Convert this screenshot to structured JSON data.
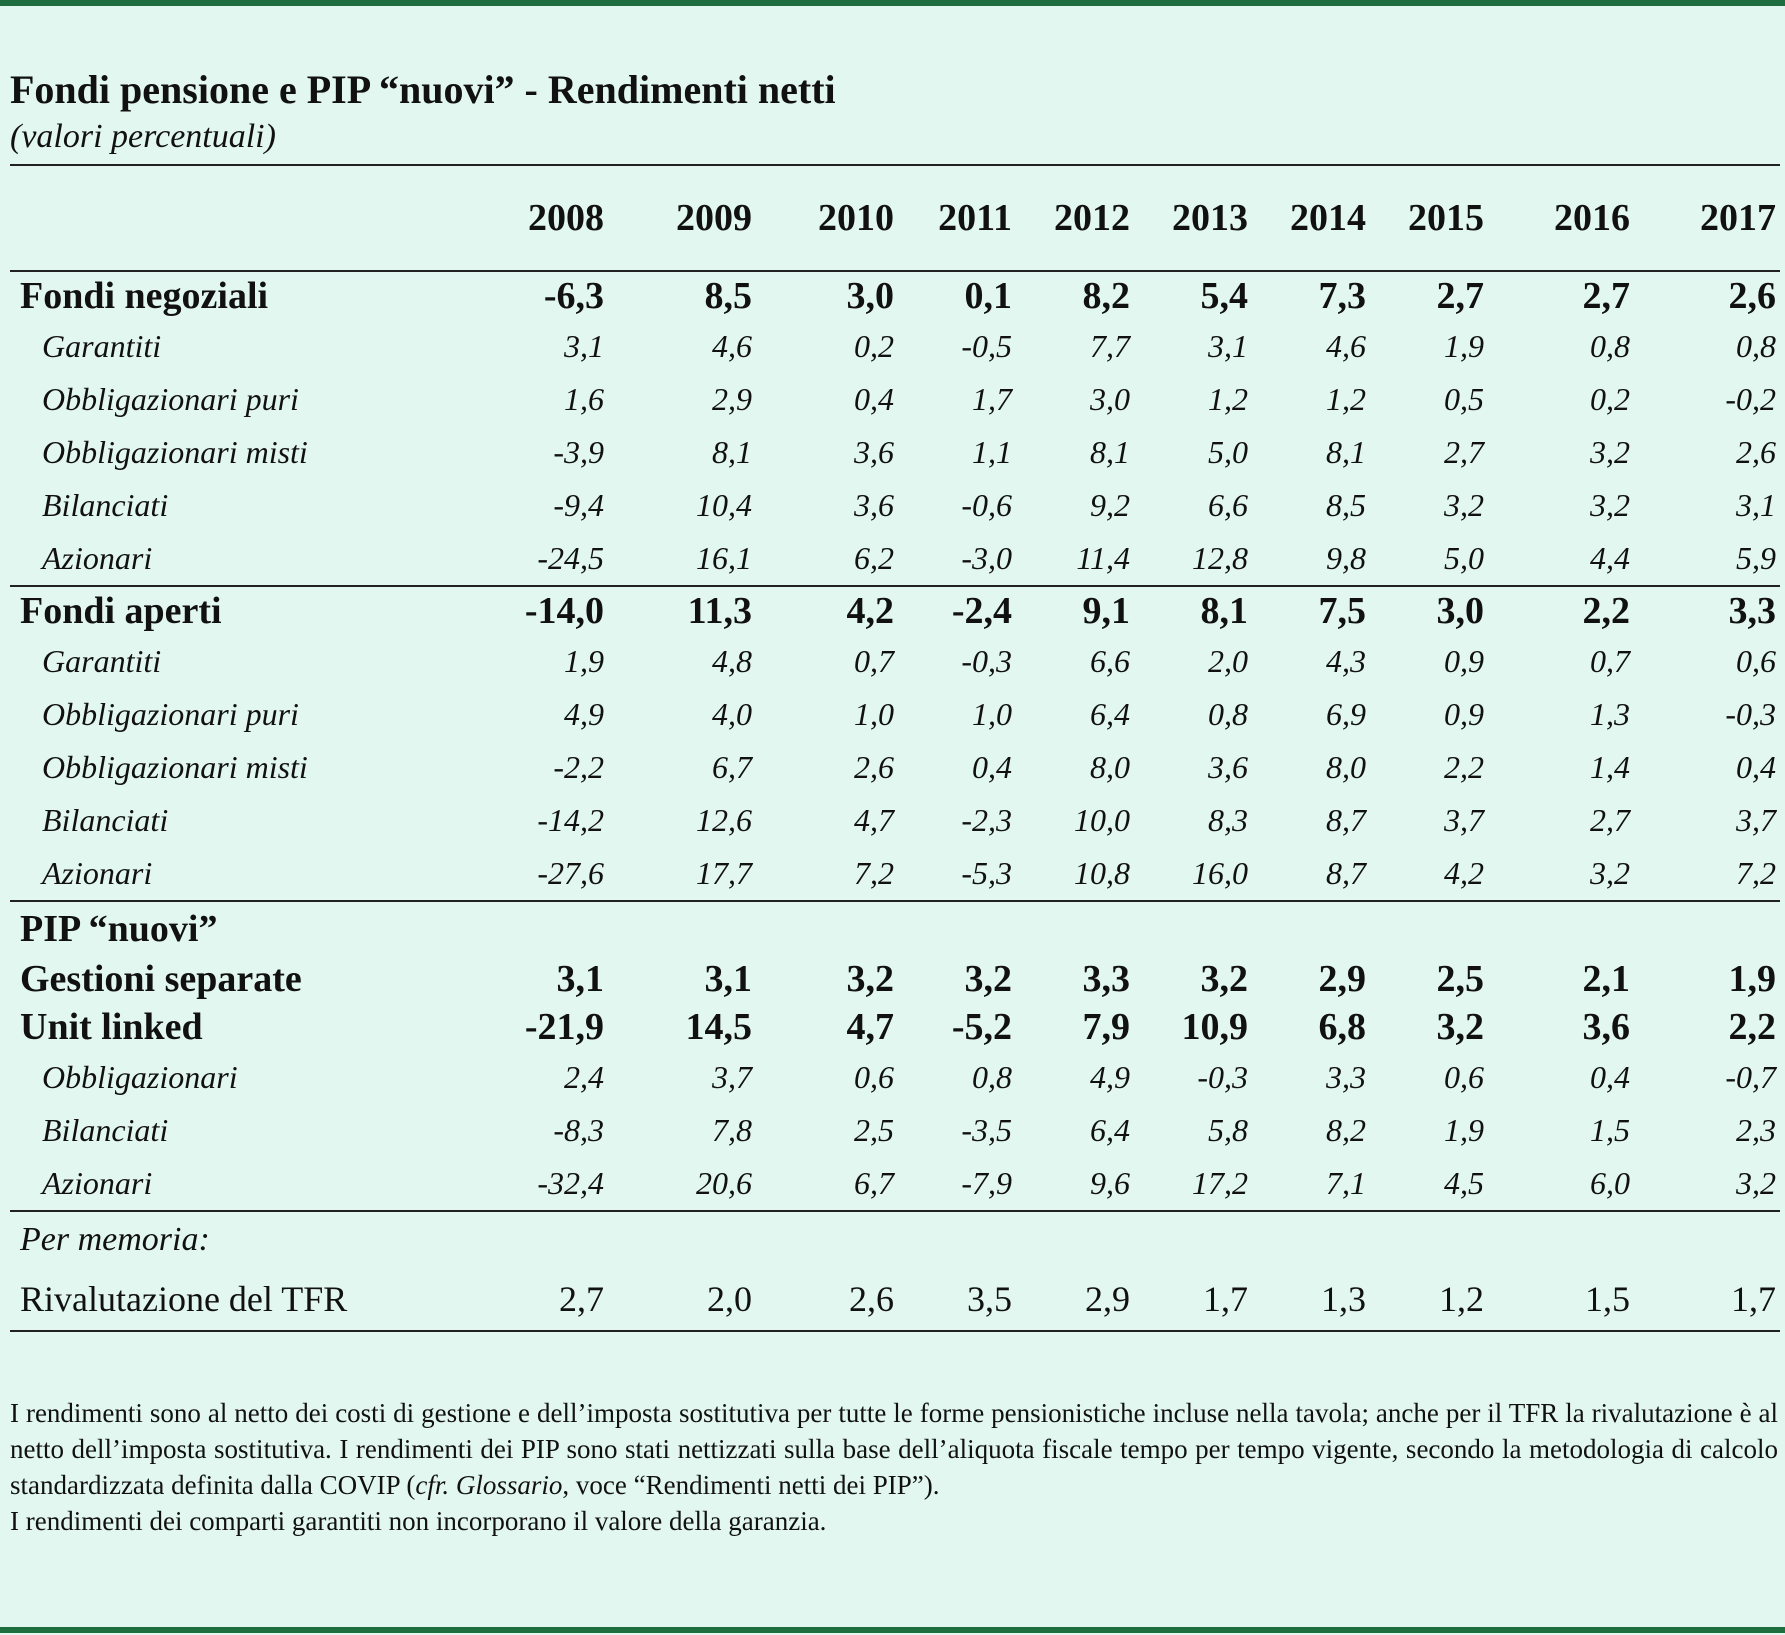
{
  "title": "Fondi pensione e PIP “nuovi” - Rendimenti netti",
  "subtitle": "(valori percentuali)",
  "years": [
    "2008",
    "2009",
    "2010",
    "2011",
    "2012",
    "2013",
    "2014",
    "2015",
    "2016",
    "2017"
  ],
  "fondi_negoziali": {
    "label": "Fondi negoziali",
    "values": [
      "-6,3",
      "8,5",
      "3,0",
      "0,1",
      "8,2",
      "5,4",
      "7,3",
      "2,7",
      "2,7",
      "2,6"
    ],
    "rows": [
      {
        "label": "Garantiti",
        "values": [
          "3,1",
          "4,6",
          "0,2",
          "-0,5",
          "7,7",
          "3,1",
          "4,6",
          "1,9",
          "0,8",
          "0,8"
        ]
      },
      {
        "label": "Obbligazionari puri",
        "values": [
          "1,6",
          "2,9",
          "0,4",
          "1,7",
          "3,0",
          "1,2",
          "1,2",
          "0,5",
          "0,2",
          "-0,2"
        ]
      },
      {
        "label": "Obbligazionari misti",
        "values": [
          "-3,9",
          "8,1",
          "3,6",
          "1,1",
          "8,1",
          "5,0",
          "8,1",
          "2,7",
          "3,2",
          "2,6"
        ]
      },
      {
        "label": "Bilanciati",
        "values": [
          "-9,4",
          "10,4",
          "3,6",
          "-0,6",
          "9,2",
          "6,6",
          "8,5",
          "3,2",
          "3,2",
          "3,1"
        ]
      },
      {
        "label": "Azionari",
        "values": [
          "-24,5",
          "16,1",
          "6,2",
          "-3,0",
          "11,4",
          "12,8",
          "9,8",
          "5,0",
          "4,4",
          "5,9"
        ]
      }
    ]
  },
  "fondi_aperti": {
    "label": "Fondi aperti",
    "values": [
      "-14,0",
      "11,3",
      "4,2",
      "-2,4",
      "9,1",
      "8,1",
      "7,5",
      "3,0",
      "2,2",
      "3,3"
    ],
    "rows": [
      {
        "label": "Garantiti",
        "values": [
          "1,9",
          "4,8",
          "0,7",
          "-0,3",
          "6,6",
          "2,0",
          "4,3",
          "0,9",
          "0,7",
          "0,6"
        ]
      },
      {
        "label": "Obbligazionari puri",
        "values": [
          "4,9",
          "4,0",
          "1,0",
          "1,0",
          "6,4",
          "0,8",
          "6,9",
          "0,9",
          "1,3",
          "-0,3"
        ]
      },
      {
        "label": "Obbligazionari misti",
        "values": [
          "-2,2",
          "6,7",
          "2,6",
          "0,4",
          "8,0",
          "3,6",
          "8,0",
          "2,2",
          "1,4",
          "0,4"
        ]
      },
      {
        "label": "Bilanciati",
        "values": [
          "-14,2",
          "12,6",
          "4,7",
          "-2,3",
          "10,0",
          "8,3",
          "8,7",
          "3,7",
          "2,7",
          "3,7"
        ]
      },
      {
        "label": "Azionari",
        "values": [
          "-27,6",
          "17,7",
          "7,2",
          "-5,3",
          "10,8",
          "16,0",
          "8,7",
          "4,2",
          "3,2",
          "7,2"
        ]
      }
    ]
  },
  "pip": {
    "label": "PIP “nuovi”",
    "gestioni": {
      "label": "Gestioni separate",
      "values": [
        "3,1",
        "3,1",
        "3,2",
        "3,2",
        "3,3",
        "3,2",
        "2,9",
        "2,5",
        "2,1",
        "1,9"
      ]
    },
    "unit": {
      "label": "Unit linked",
      "values": [
        "-21,9",
        "14,5",
        "4,7",
        "-5,2",
        "7,9",
        "10,9",
        "6,8",
        "3,2",
        "3,6",
        "2,2"
      ]
    },
    "rows": [
      {
        "label": "Obbligazionari",
        "values": [
          "2,4",
          "3,7",
          "0,6",
          "0,8",
          "4,9",
          "-0,3",
          "3,3",
          "0,6",
          "0,4",
          "-0,7"
        ]
      },
      {
        "label": "Bilanciati",
        "values": [
          "-8,3",
          "7,8",
          "2,5",
          "-3,5",
          "6,4",
          "5,8",
          "8,2",
          "1,9",
          "1,5",
          "2,3"
        ]
      },
      {
        "label": "Azionari",
        "values": [
          "-32,4",
          "20,6",
          "6,7",
          "-7,9",
          "9,6",
          "17,2",
          "7,1",
          "4,5",
          "6,0",
          "3,2"
        ]
      }
    ]
  },
  "memo": {
    "label": "Per memoria:",
    "tfr": {
      "label": "Rivalutazione del TFR",
      "values": [
        "2,7",
        "2,0",
        "2,6",
        "3,5",
        "2,9",
        "1,7",
        "1,3",
        "1,2",
        "1,5",
        "1,7"
      ]
    }
  },
  "notes": {
    "p1_a": "I rendimenti sono al netto dei costi di gestione e dell’imposta sostitutiva per tutte le forme pensionistiche incluse nella tavola; anche per il TFR la rivalutazione è al netto dell’imposta sostitutiva. I rendimenti dei PIP sono stati nettizzati sulla base dell’aliquota fiscale tempo per tempo vigente, secondo la metodologia di calcolo standardizzata definita dalla COVIP (",
    "p1_cfr": "cfr. Glossario",
    "p1_b": ", voce “Rendimenti netti dei PIP”).",
    "p2": "I rendimenti dei comparti garantiti non incorporano il valore della garanzia."
  }
}
